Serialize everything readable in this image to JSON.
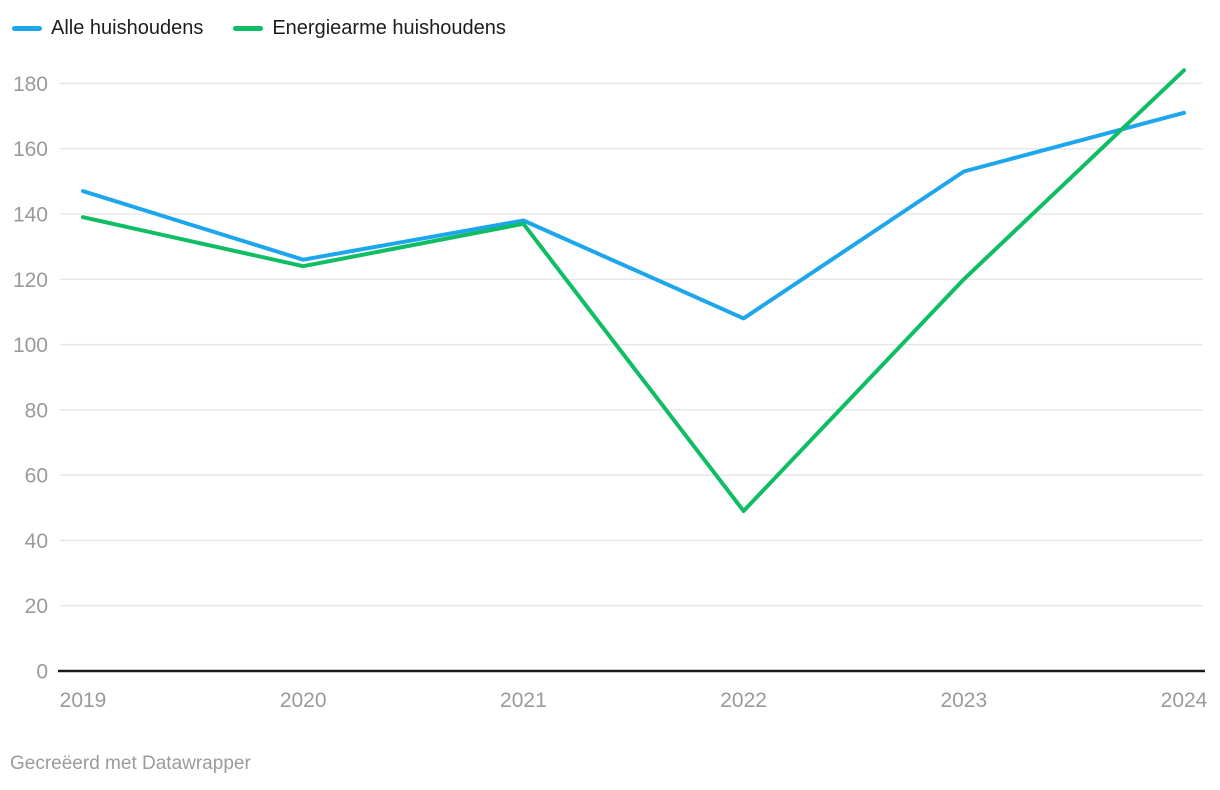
{
  "legend": {
    "items": [
      {
        "label": "Alle huishoudens",
        "color": "#1DA6EC"
      },
      {
        "label": "Energiearme huishoudens",
        "color": "#0FBE64"
      }
    ]
  },
  "footer": {
    "attribution": "Gecreëerd met Datawrapper"
  },
  "colors": {
    "grid": "#e6e6e6",
    "axis": "#1a1a1a",
    "tick_text": "#9a9a9a",
    "legend_text": "#1d1d1d"
  },
  "chart_data": {
    "type": "line",
    "x": [
      2019,
      2020,
      2021,
      2022,
      2023,
      2024
    ],
    "series": [
      {
        "name": "Alle huishoudens",
        "color": "#1DA6EC",
        "values": [
          147,
          126,
          138,
          108,
          153,
          171
        ]
      },
      {
        "name": "Energiearme huishoudens",
        "color": "#0FBE64",
        "values": [
          139,
          124,
          137,
          49,
          120,
          184
        ]
      }
    ],
    "y_ticks": [
      0,
      20,
      40,
      60,
      80,
      100,
      120,
      140,
      160,
      180
    ],
    "ylim": [
      0,
      185
    ],
    "xlabel": "",
    "ylabel": "",
    "title": "",
    "grid": true,
    "legend_position": "top-left"
  }
}
